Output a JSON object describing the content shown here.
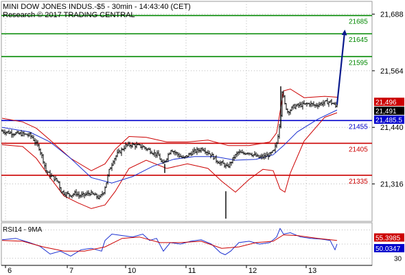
{
  "header": {
    "title": "MINI DOW JONES INDUS.-$5 - 30min - 14:43:40 (CET)",
    "copyright": "Research © 2017 TRADING CENTRAL"
  },
  "colors": {
    "price": "#000000",
    "bollinger": "#cc0000",
    "moving_average": "#1a2fd0",
    "support": "#cc0000",
    "resistance": "#008800",
    "pivot": "#0000cc",
    "projection_arrow": "#0a1a8c",
    "rsi": "#1a2fd0",
    "rsi_ma": "#cc0000",
    "grid": "#bbbbbb",
    "last_price_tag": "#000000",
    "high_tag": "#cc0000",
    "low_tag": "#0000cc"
  },
  "chart_data": [
    {
      "type": "candlestick",
      "title": "MINI DOW JONES INDUS.-$5 - 30min - 14:43:40 (CET)",
      "interval": "30min",
      "x_tick_labels": [
        "6",
        "7",
        "10",
        "11",
        "12",
        "13"
      ],
      "y_tick_labels": [
        "21,688",
        "21,564",
        "21,440",
        "21,316"
      ],
      "ylim": [
        21234,
        21716
      ],
      "grid": true,
      "price_tags": [
        {
          "label": "21,496",
          "value": 21496,
          "style": "high_tag"
        },
        {
          "label": "21,491",
          "value": 21491,
          "style": "last_price_tag"
        },
        {
          "label": "21,485.5",
          "value": 21485.5,
          "style": "low_tag"
        }
      ],
      "levels": [
        {
          "label": "21685",
          "value": 21685,
          "kind": "resistance"
        },
        {
          "label": "21645",
          "value": 21645,
          "kind": "resistance"
        },
        {
          "label": "21595",
          "value": 21595,
          "kind": "resistance"
        },
        {
          "label": "21455",
          "value": 21455,
          "kind": "pivot"
        },
        {
          "label": "21405",
          "value": 21405,
          "kind": "support"
        },
        {
          "label": "21335",
          "value": 21335,
          "kind": "support"
        }
      ],
      "projection": {
        "from_value": 21490,
        "to_value": 21648
      },
      "close_keypoints": [
        [
          0,
          21432
        ],
        [
          12,
          21428
        ],
        [
          22,
          21426
        ],
        [
          30,
          21425
        ],
        [
          40,
          21423
        ],
        [
          44,
          21418
        ],
        [
          48,
          21408
        ],
        [
          54,
          21395
        ],
        [
          60,
          21368
        ],
        [
          64,
          21345
        ],
        [
          70,
          21335
        ],
        [
          76,
          21328
        ],
        [
          82,
          21320
        ],
        [
          86,
          21300
        ],
        [
          92,
          21295
        ],
        [
          100,
          21292
        ],
        [
          108,
          21296
        ],
        [
          112,
          21290
        ],
        [
          120,
          21292
        ],
        [
          128,
          21296
        ],
        [
          136,
          21290
        ],
        [
          142,
          21285
        ],
        [
          148,
          21300
        ],
        [
          152,
          21320
        ],
        [
          156,
          21345
        ],
        [
          162,
          21368
        ],
        [
          168,
          21382
        ],
        [
          174,
          21390
        ],
        [
          180,
          21400
        ],
        [
          188,
          21402
        ],
        [
          196,
          21400
        ],
        [
          204,
          21398
        ],
        [
          212,
          21392
        ],
        [
          220,
          21385
        ],
        [
          228,
          21378
        ],
        [
          234,
          21358
        ],
        [
          240,
          21374
        ],
        [
          246,
          21392
        ],
        [
          252,
          21385
        ],
        [
          258,
          21378
        ],
        [
          264,
          21372
        ],
        [
          270,
          21378
        ],
        [
          278,
          21386
        ],
        [
          286,
          21390
        ],
        [
          292,
          21394
        ],
        [
          300,
          21385
        ],
        [
          306,
          21378
        ],
        [
          312,
          21368
        ],
        [
          318,
          21362
        ],
        [
          324,
          21358
        ],
        [
          328,
          21352
        ],
        [
          332,
          21360
        ],
        [
          338,
          21375
        ],
        [
          344,
          21385
        ],
        [
          350,
          21382
        ],
        [
          358,
          21386
        ],
        [
          366,
          21380
        ],
        [
          374,
          21374
        ],
        [
          382,
          21376
        ],
        [
          390,
          21380
        ],
        [
          396,
          21388
        ],
        [
          400,
          21405
        ],
        [
          403,
          21432
        ],
        [
          406,
          21470
        ],
        [
          408,
          21520
        ],
        [
          412,
          21490
        ],
        [
          416,
          21475
        ],
        [
          420,
          21478
        ],
        [
          424,
          21485
        ],
        [
          432,
          21488
        ],
        [
          440,
          21490
        ],
        [
          448,
          21492
        ],
        [
          456,
          21488
        ],
        [
          464,
          21492
        ],
        [
          472,
          21495
        ],
        [
          478,
          21496
        ],
        [
          482,
          21492
        ],
        [
          486,
          21486
        ],
        [
          488,
          21491
        ]
      ],
      "bollinger_upper": [
        [
          0,
          21460
        ],
        [
          30,
          21452
        ],
        [
          50,
          21438
        ],
        [
          70,
          21412
        ],
        [
          100,
          21372
        ],
        [
          130,
          21345
        ],
        [
          150,
          21360
        ],
        [
          165,
          21392
        ],
        [
          185,
          21420
        ],
        [
          210,
          21418
        ],
        [
          240,
          21408
        ],
        [
          270,
          21408
        ],
        [
          300,
          21412
        ],
        [
          330,
          21400
        ],
        [
          360,
          21400
        ],
        [
          390,
          21408
        ],
        [
          400,
          21428
        ],
        [
          410,
          21520
        ],
        [
          420,
          21524
        ],
        [
          440,
          21505
        ],
        [
          470,
          21508
        ],
        [
          488,
          21506
        ]
      ],
      "bollinger_lower": [
        [
          0,
          21402
        ],
        [
          30,
          21398
        ],
        [
          50,
          21372
        ],
        [
          70,
          21330
        ],
        [
          90,
          21290
        ],
        [
          110,
          21275
        ],
        [
          130,
          21262
        ],
        [
          150,
          21270
        ],
        [
          165,
          21300
        ],
        [
          185,
          21350
        ],
        [
          210,
          21368
        ],
        [
          240,
          21350
        ],
        [
          270,
          21360
        ],
        [
          300,
          21350
        ],
        [
          320,
          21322
        ],
        [
          340,
          21298
        ],
        [
          360,
          21326
        ],
        [
          380,
          21348
        ],
        [
          395,
          21345
        ],
        [
          405,
          21305
        ],
        [
          412,
          21298
        ],
        [
          420,
          21340
        ],
        [
          440,
          21410
        ],
        [
          470,
          21462
        ],
        [
          488,
          21472
        ]
      ],
      "moving_average": [
        [
          0,
          21440
        ],
        [
          40,
          21430
        ],
        [
          70,
          21408
        ],
        [
          100,
          21372
        ],
        [
          130,
          21330
        ],
        [
          160,
          21318
        ],
        [
          190,
          21332
        ],
        [
          220,
          21355
        ],
        [
          250,
          21370
        ],
        [
          280,
          21376
        ],
        [
          310,
          21376
        ],
        [
          340,
          21368
        ],
        [
          370,
          21370
        ],
        [
          395,
          21380
        ],
        [
          410,
          21400
        ],
        [
          430,
          21430
        ],
        [
          460,
          21458
        ],
        [
          488,
          21478
        ]
      ]
    },
    {
      "type": "line",
      "title": "RSI14 - 9MA",
      "y_tick_labels": [
        "30"
      ],
      "value_tags": [
        {
          "label": "55.3985",
          "value": 55.3985,
          "series": "RSI14 - 9MA",
          "style": "high_tag"
        },
        {
          "label": "50.0347",
          "value": 50.0347,
          "series": "RSI14 - 9MA",
          "style": "low_tag"
        }
      ],
      "ylim": [
        20,
        80
      ],
      "grid": true,
      "series": [
        {
          "name": "RSI14 - 9MA",
          "values": [
            [
              0,
              56
            ],
            [
              20,
              58
            ],
            [
              40,
              52
            ],
            [
              55,
              47
            ],
            [
              70,
              36
            ],
            [
              85,
              40
            ],
            [
              100,
              33
            ],
            [
              115,
              42
            ],
            [
              130,
              44
            ],
            [
              145,
              40
            ],
            [
              150,
              55
            ],
            [
              160,
              64
            ],
            [
              175,
              62
            ],
            [
              190,
              60
            ],
            [
              205,
              64
            ],
            [
              215,
              55
            ],
            [
              225,
              58
            ],
            [
              235,
              40
            ],
            [
              245,
              52
            ],
            [
              260,
              50
            ],
            [
              275,
              54
            ],
            [
              290,
              56
            ],
            [
              305,
              50
            ],
            [
              318,
              38
            ],
            [
              325,
              35
            ],
            [
              333,
              40
            ],
            [
              345,
              52
            ],
            [
              360,
              54
            ],
            [
              375,
              50
            ],
            [
              390,
              52
            ],
            [
              400,
              60
            ],
            [
              405,
              72
            ],
            [
              410,
              64
            ],
            [
              420,
              66
            ],
            [
              435,
              60
            ],
            [
              450,
              58
            ],
            [
              465,
              57
            ],
            [
              478,
              55
            ],
            [
              485,
              42
            ],
            [
              488,
              50
            ]
          ]
        },
        {
          "name": "",
          "values": [
            [
              0,
              55
            ],
            [
              30,
              54
            ],
            [
              60,
              46
            ],
            [
              90,
              40
            ],
            [
              120,
              40
            ],
            [
              150,
              46
            ],
            [
              175,
              58
            ],
            [
              200,
              60
            ],
            [
              230,
              52
            ],
            [
              260,
              52
            ],
            [
              290,
              54
            ],
            [
              320,
              44
            ],
            [
              345,
              46
            ],
            [
              370,
              52
            ],
            [
              395,
              54
            ],
            [
              410,
              63
            ],
            [
              430,
              62
            ],
            [
              460,
              58
            ],
            [
              488,
              55
            ]
          ]
        }
      ]
    }
  ]
}
